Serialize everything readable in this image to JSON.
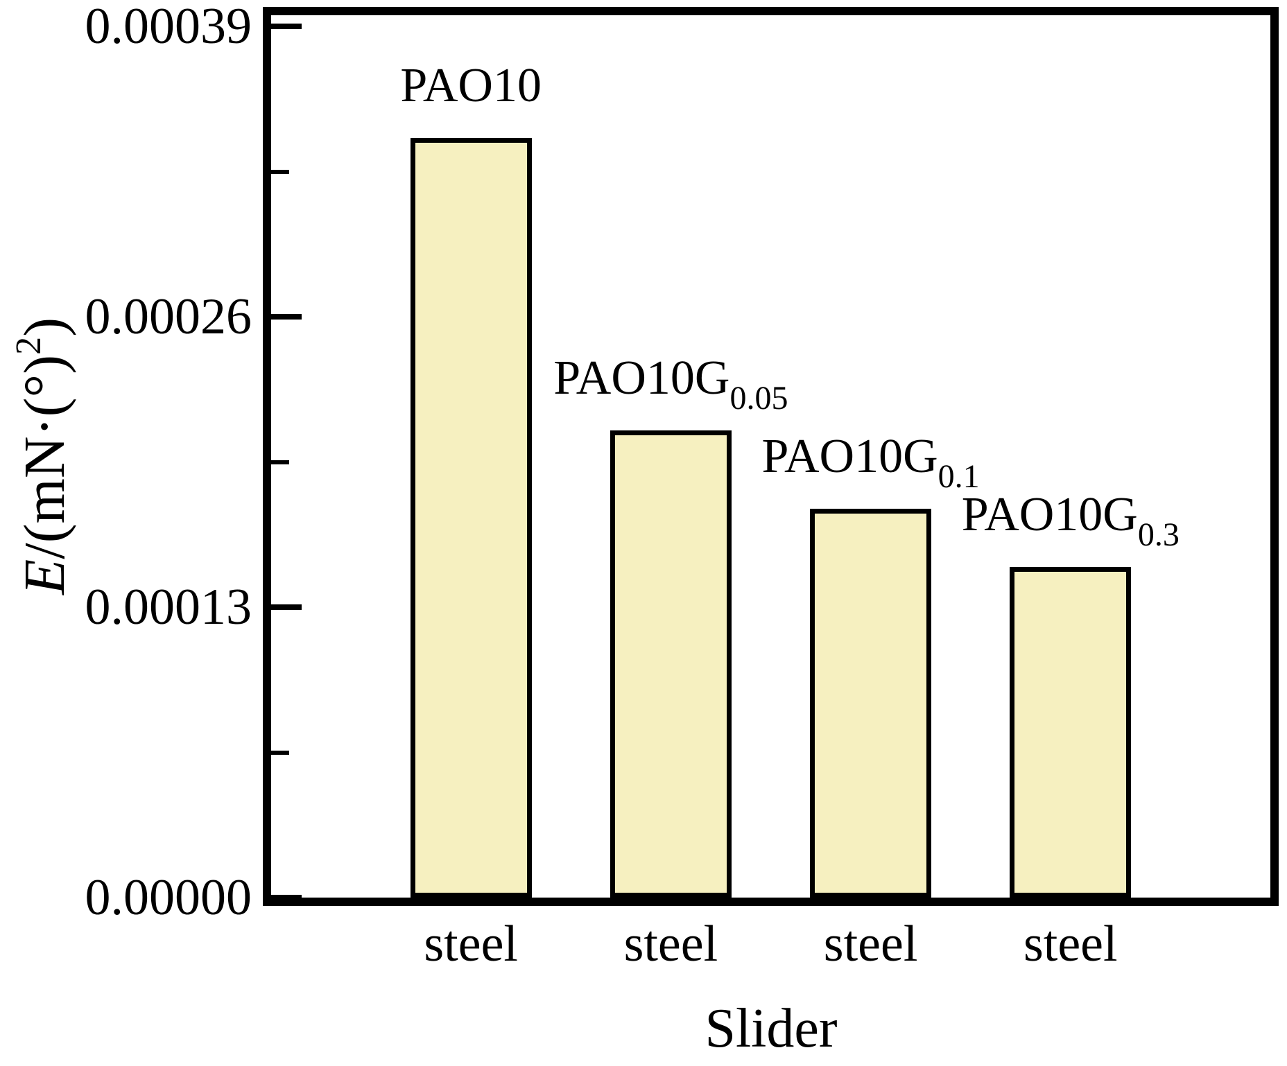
{
  "chart_data": {
    "type": "bar",
    "title": "",
    "xlabel": "Slider",
    "ylabel": {
      "variable": "E",
      "unit_pre": "/(mN·(°)",
      "unit_sup": "2",
      "unit_post": ")"
    },
    "categories": [
      "steel",
      "steel",
      "steel",
      "steel"
    ],
    "bars": [
      {
        "label_main": "PAO10",
        "label_sub": "",
        "value": 0.00034
      },
      {
        "label_main": "PAO10G",
        "label_sub": "0.05",
        "value": 0.000209
      },
      {
        "label_main": "PAO10G",
        "label_sub": "0.1",
        "value": 0.000174
      },
      {
        "label_main": "PAO10G",
        "label_sub": "0.3",
        "value": 0.000148
      }
    ],
    "ylim": [
      0,
      0.000395
    ],
    "yticks": [
      {
        "value": 0.0,
        "label": "0.00000"
      },
      {
        "value": 0.00013,
        "label": "0.00013"
      },
      {
        "value": 0.00026,
        "label": "0.00026"
      },
      {
        "value": 0.00039,
        "label": "0.00039"
      }
    ],
    "minor_yticks": [
      6.5e-05,
      0.000195,
      0.000325
    ],
    "grid": false,
    "legend": "none",
    "styles": {
      "bar_fill": "#F6F0C0",
      "bar_border": "#000000",
      "axis_color": "#000000",
      "background": "#FFFFFF",
      "text_color": "#000000"
    }
  }
}
